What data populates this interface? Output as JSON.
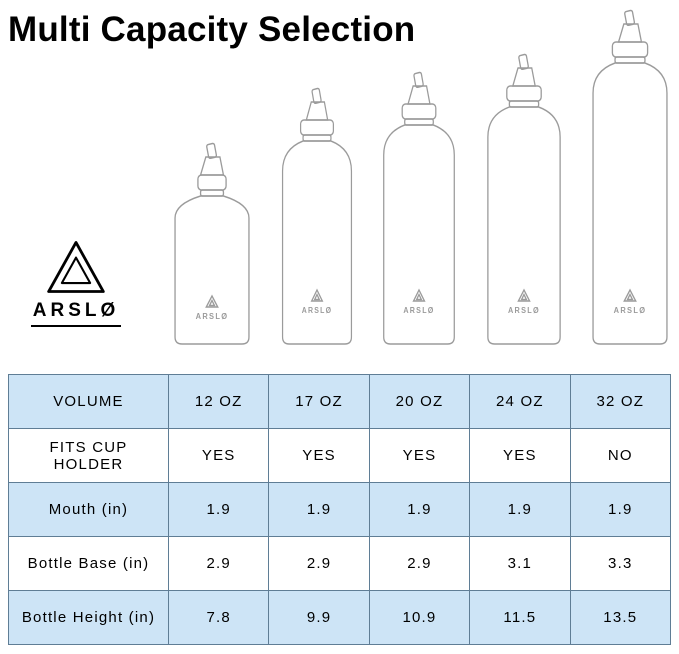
{
  "title": "Multi Capacity Selection",
  "brand": {
    "name": "ARSLØ"
  },
  "colors": {
    "row_blue": "#cde4f6",
    "table_border": "#5f7d95",
    "line_art": "#9b9b9b"
  },
  "bottles": [
    {
      "volume": "12 OZ"
    },
    {
      "volume": "17 OZ"
    },
    {
      "volume": "20 OZ"
    },
    {
      "volume": "24 OZ"
    },
    {
      "volume": "32 OZ"
    }
  ],
  "chart_data": {
    "type": "table",
    "columns": [
      "VOLUME",
      "12 OZ",
      "17 OZ",
      "20 OZ",
      "24 OZ",
      "32 OZ"
    ],
    "rows": [
      {
        "label": "VOLUME",
        "values": [
          "12 OZ",
          "17 OZ",
          "20 OZ",
          "24 OZ",
          "32 OZ"
        ]
      },
      {
        "label": "FITS CUP HOLDER",
        "values": [
          "YES",
          "YES",
          "YES",
          "YES",
          "NO"
        ]
      },
      {
        "label": "Mouth (in)",
        "values": [
          "1.9",
          "1.9",
          "1.9",
          "1.9",
          "1.9"
        ]
      },
      {
        "label": "Bottle Base (in)",
        "values": [
          "2.9",
          "2.9",
          "2.9",
          "3.1",
          "3.3"
        ]
      },
      {
        "label": "Bottle Height (in)",
        "values": [
          "7.8",
          "9.9",
          "10.9",
          "11.5",
          "13.5"
        ]
      }
    ]
  }
}
